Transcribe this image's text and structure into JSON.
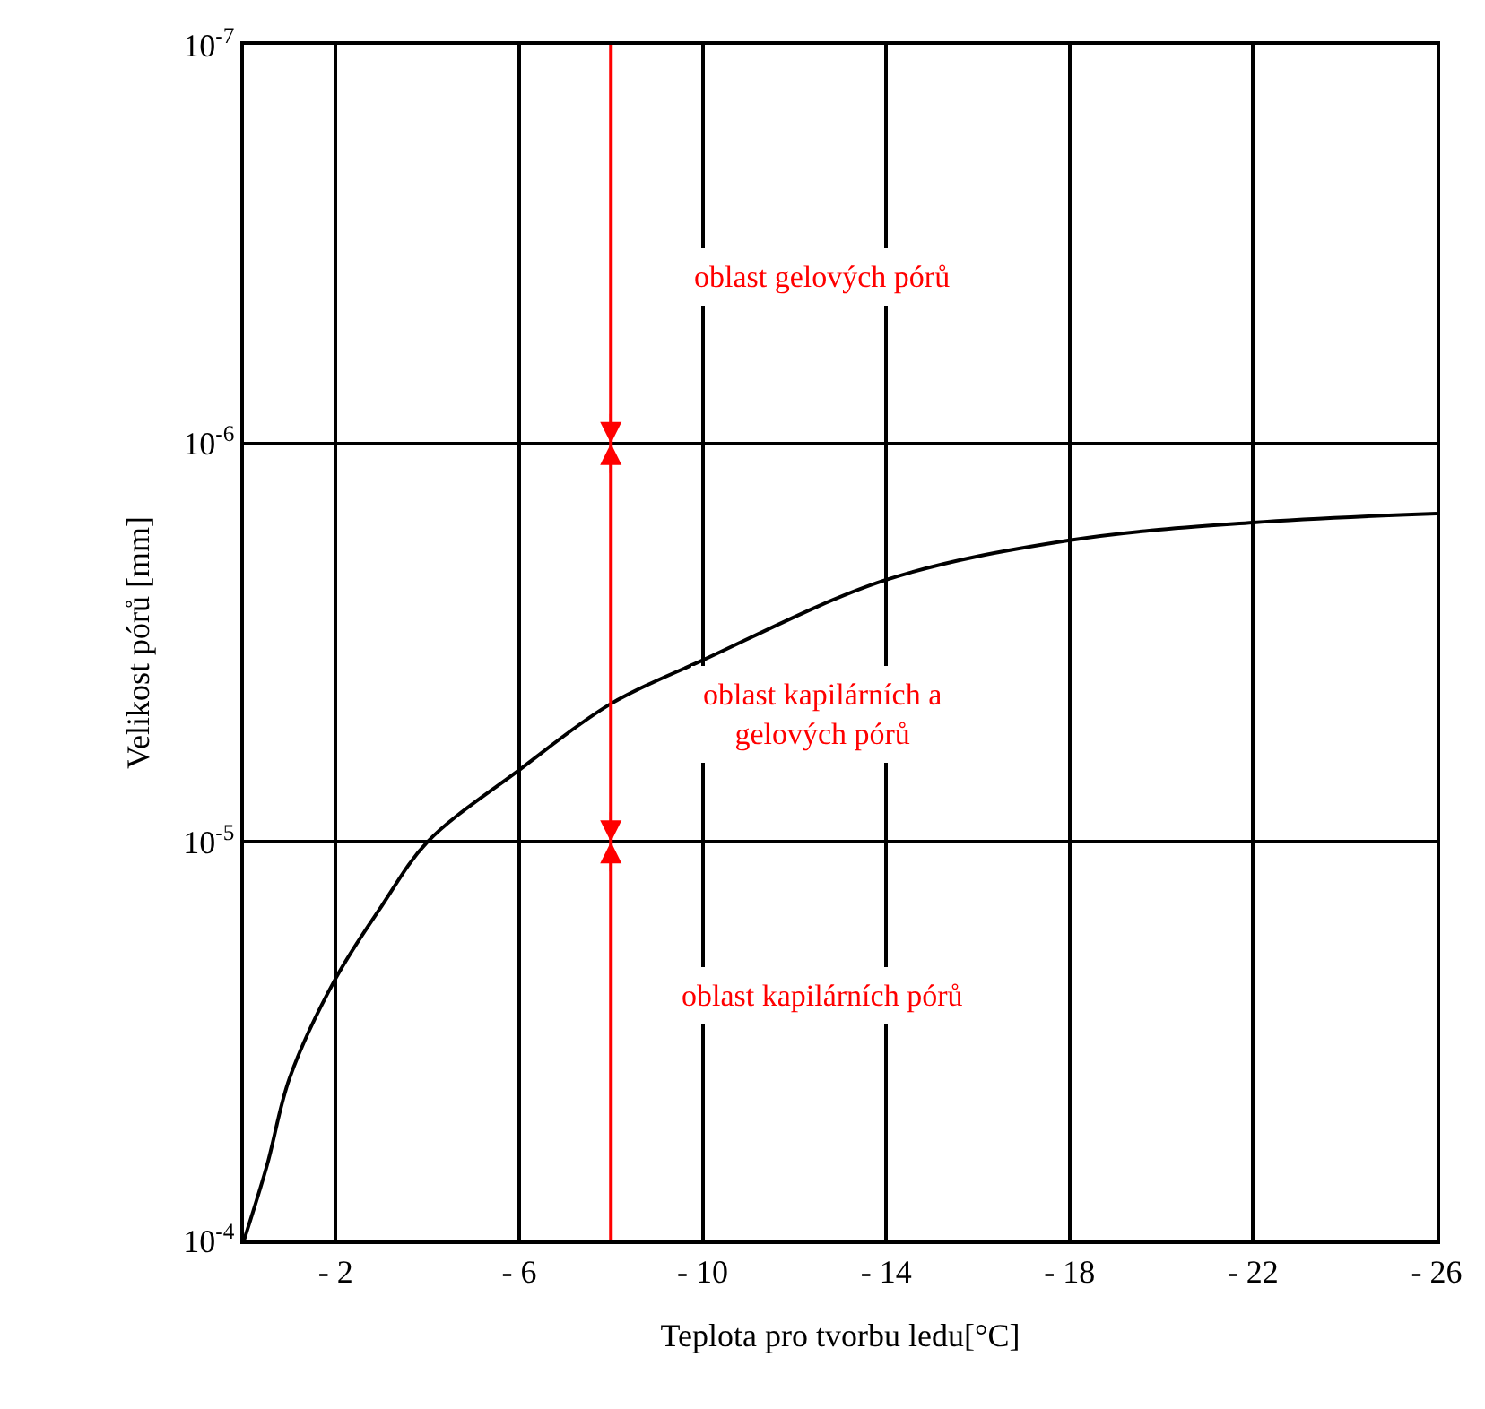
{
  "chart_data": {
    "type": "line",
    "xlabel": "Teplota pro tvorbu ledu[°C]",
    "ylabel": "Velikost pórů [mm]",
    "x": [
      0,
      -0.5,
      -1,
      -2,
      -3,
      -4,
      -6,
      -8,
      -10,
      -14,
      -18,
      -22,
      -26
    ],
    "series": [
      {
        "color": "#000000",
        "values": [
          0.0001,
          6.5e-05,
          3.9e-05,
          2.2e-05,
          1.45e-05,
          1e-05,
          6.6e-06,
          4.5e-06,
          3.5e-06,
          2.2e-06,
          1.75e-06,
          1.58e-06,
          1.5e-06
        ]
      }
    ],
    "log": "y",
    "xlim": [
      0,
      -26
    ],
    "ylim": [
      0.0001,
      1e-07
    ],
    "xticks": [
      {
        "value": -2,
        "label": "- 2"
      },
      {
        "value": -6,
        "label": "- 6"
      },
      {
        "value": -10,
        "label": "- 10"
      },
      {
        "value": -14,
        "label": "- 14"
      },
      {
        "value": -18,
        "label": "- 18"
      },
      {
        "value": -22,
        "label": "- 22"
      },
      {
        "value": -26,
        "label": "- 26"
      }
    ],
    "yticks": [
      {
        "value": 0.0001,
        "label": "10$^{-4}$"
      },
      {
        "value": 1e-05,
        "label": "10$^{-5}$"
      },
      {
        "value": 1e-06,
        "label": "10$^{-6}$"
      },
      {
        "value": 1e-07,
        "label": "10$^{-7}$"
      }
    ],
    "ref_lines": [
      {
        "axis": "x",
        "value": -8,
        "color": "#ff0000"
      }
    ],
    "annotations": [
      "oblast gelových pórů",
      "oblast kapilárních a\ngelových pórů",
      "oblast kapilárních pórů"
    ],
    "grid": true,
    "marker": "none",
    "line_style": "solid"
  }
}
